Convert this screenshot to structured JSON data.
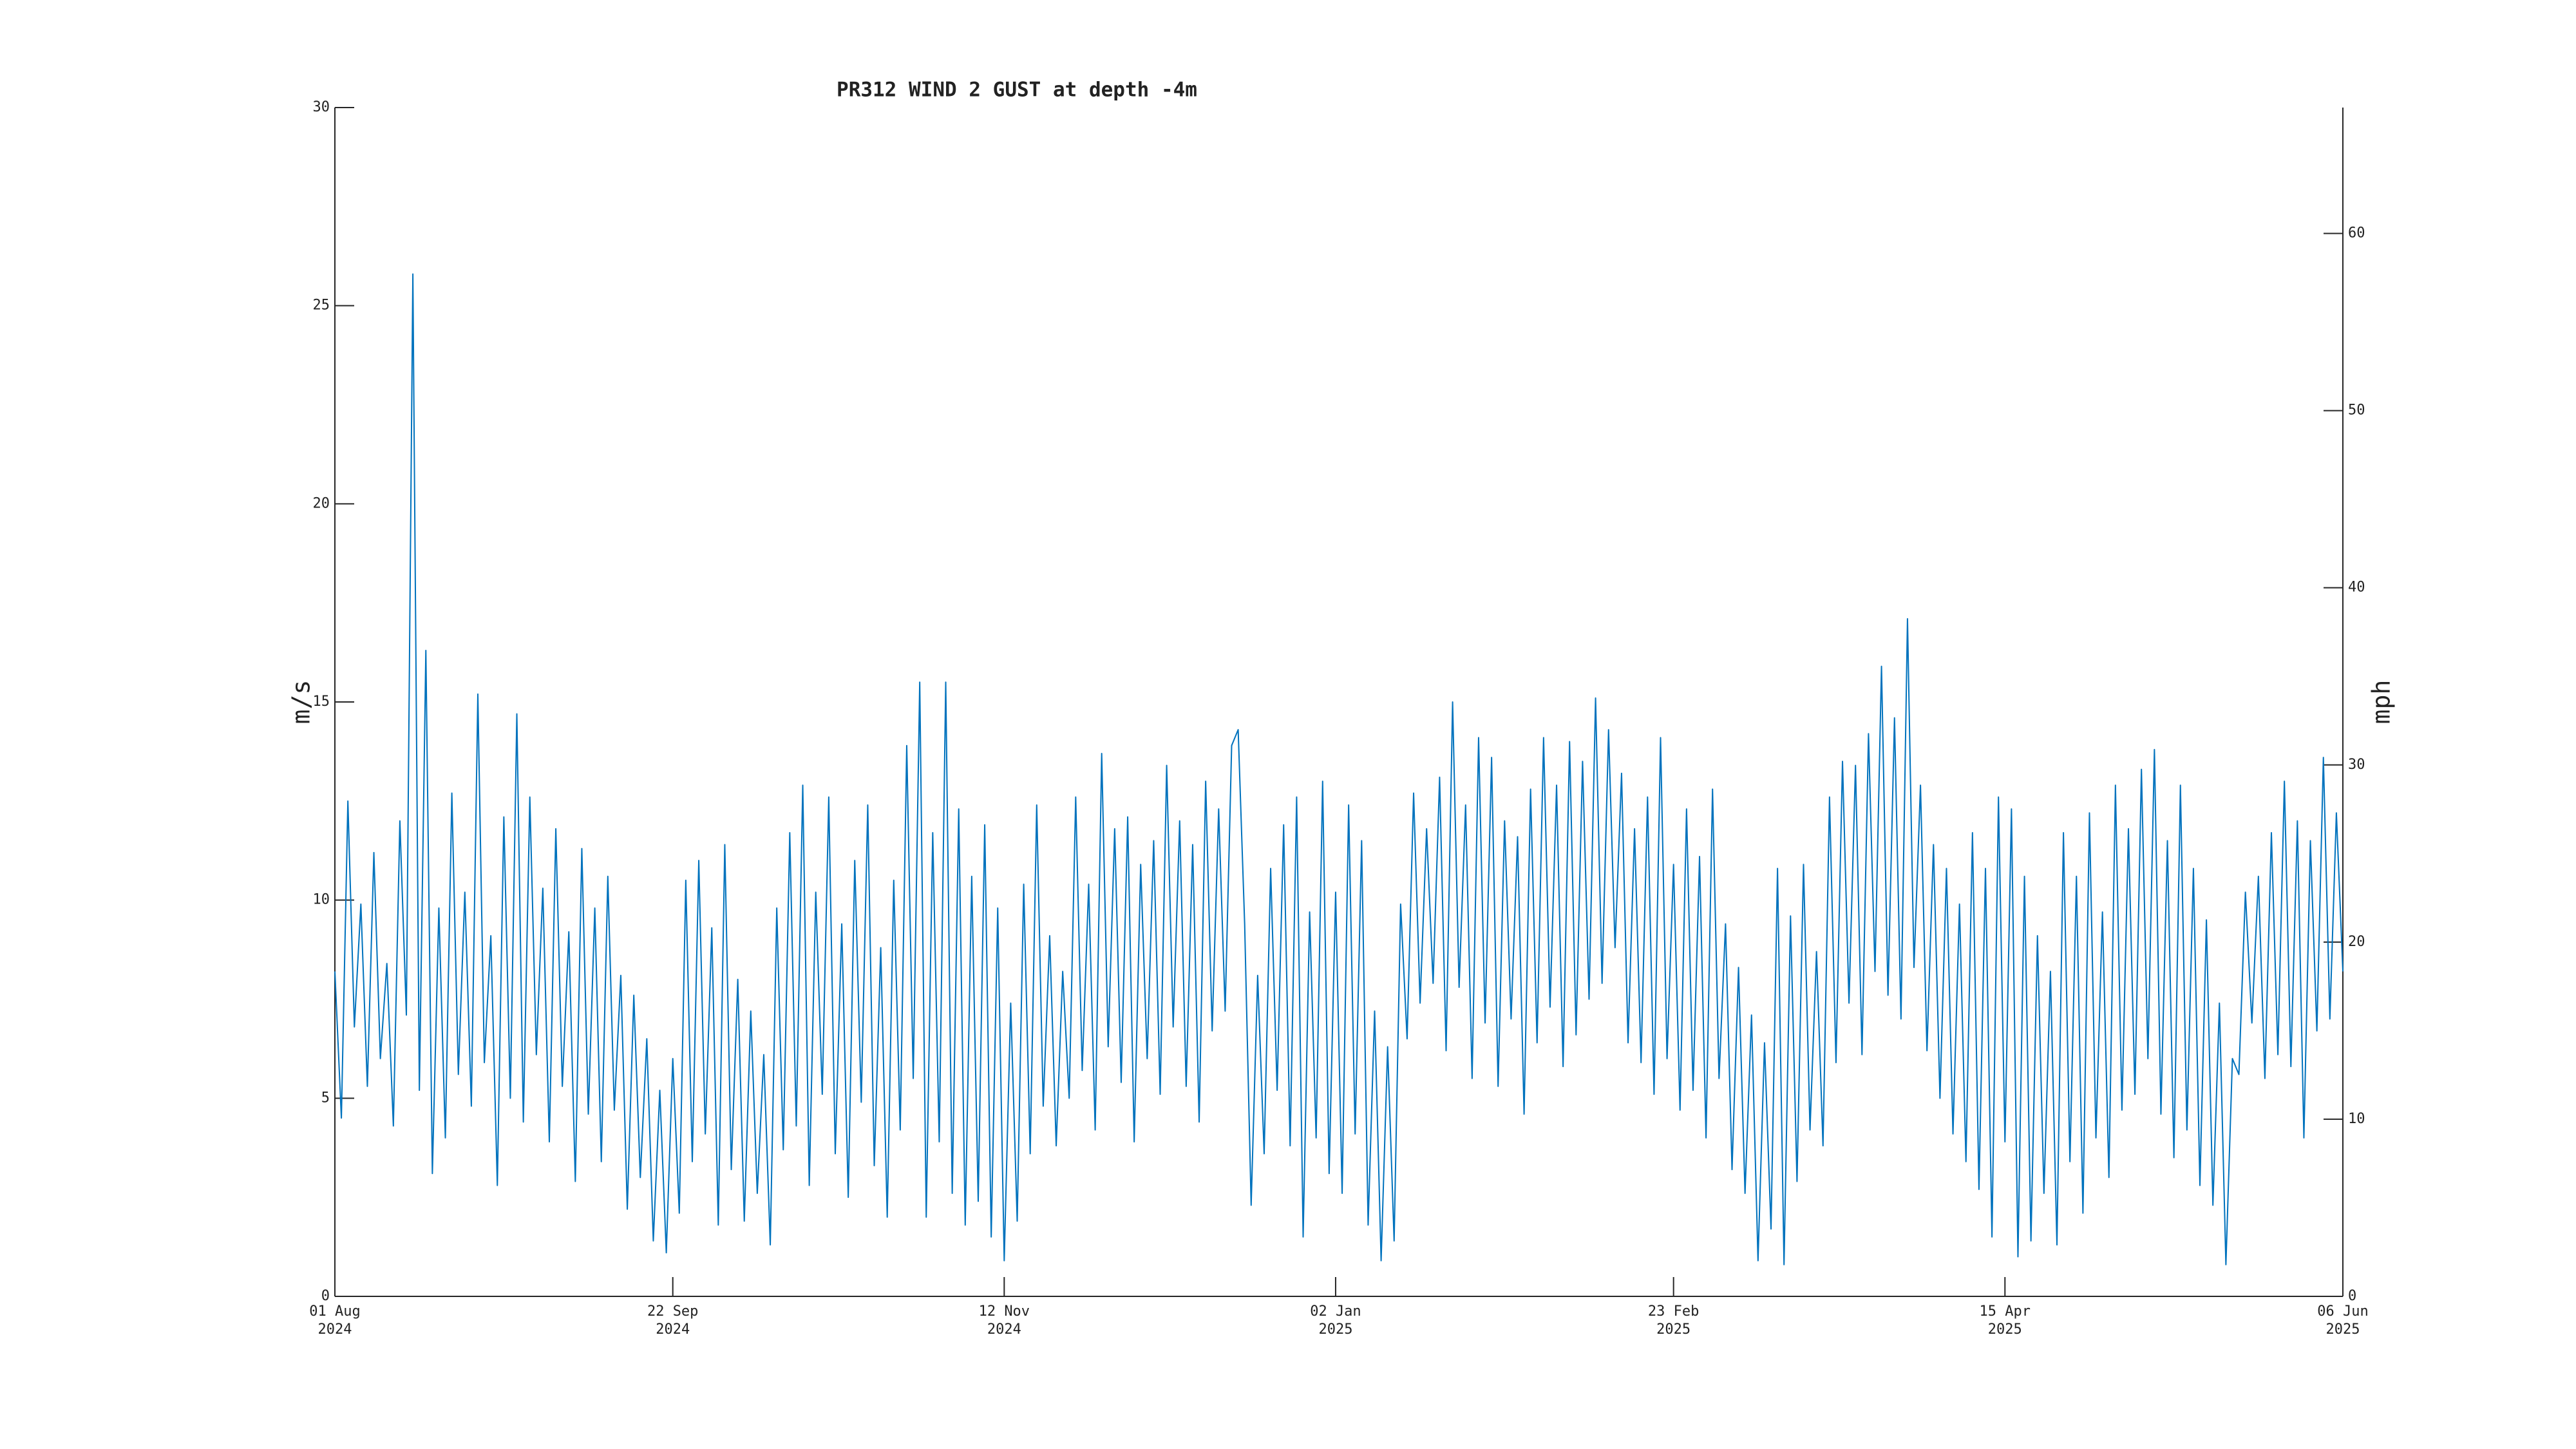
{
  "chart_data": {
    "type": "line",
    "title": "PR312 WIND 2 GUST at depth -4m",
    "ylabel": "m/s",
    "y2label": "mph",
    "xlim": [
      "2024-08-01",
      "2025-06-06"
    ],
    "xticks": [
      {
        "value": "2024-08-01",
        "label": "01 Aug 2024"
      },
      {
        "value": "2024-09-22",
        "label": "22 Sep 2024"
      },
      {
        "value": "2024-11-12",
        "label": "12 Nov 2024"
      },
      {
        "value": "2025-01-02",
        "label": "02 Jan 2025"
      },
      {
        "value": "2025-02-23",
        "label": "23 Feb 2025"
      },
      {
        "value": "2025-04-15",
        "label": "15 Apr 2025"
      },
      {
        "value": "2025-06-06",
        "label": "06 Jun 2025"
      }
    ],
    "ylim": [
      0,
      30
    ],
    "yticks": [
      0,
      5,
      10,
      15,
      20,
      25,
      30
    ],
    "y2lim": [
      0,
      67.108
    ],
    "y2ticks": [
      0,
      10,
      20,
      30,
      40,
      50,
      60
    ],
    "grid": false,
    "x": [
      "2024-08-01",
      "2024-08-02",
      "2024-08-03",
      "2024-08-04",
      "2024-08-05",
      "2024-08-06",
      "2024-08-07",
      "2024-08-08",
      "2024-08-09",
      "2024-08-10",
      "2024-08-11",
      "2024-08-12",
      "2024-08-13",
      "2024-08-14",
      "2024-08-15",
      "2024-08-16",
      "2024-08-17",
      "2024-08-18",
      "2024-08-19",
      "2024-08-20",
      "2024-08-21",
      "2024-08-22",
      "2024-08-23",
      "2024-08-24",
      "2024-08-25",
      "2024-08-26",
      "2024-08-27",
      "2024-08-28",
      "2024-08-29",
      "2024-08-30",
      "2024-08-31",
      "2024-09-01",
      "2024-09-02",
      "2024-09-03",
      "2024-09-04",
      "2024-09-05",
      "2024-09-06",
      "2024-09-07",
      "2024-09-08",
      "2024-09-09",
      "2024-09-10",
      "2024-09-11",
      "2024-09-12",
      "2024-09-13",
      "2024-09-14",
      "2024-09-15",
      "2024-09-16",
      "2024-09-17",
      "2024-09-18",
      "2024-09-19",
      "2024-09-20",
      "2024-09-21",
      "2024-09-22",
      "2024-09-23",
      "2024-09-24",
      "2024-09-25",
      "2024-09-26",
      "2024-09-27",
      "2024-09-28",
      "2024-09-29",
      "2024-09-30",
      "2024-10-01",
      "2024-10-02",
      "2024-10-03",
      "2024-10-04",
      "2024-10-05",
      "2024-10-06",
      "2024-10-07",
      "2024-10-08",
      "2024-10-09",
      "2024-10-10",
      "2024-10-11",
      "2024-10-12",
      "2024-10-13",
      "2024-10-14",
      "2024-10-15",
      "2024-10-16",
      "2024-10-17",
      "2024-10-18",
      "2024-10-19",
      "2024-10-20",
      "2024-10-21",
      "2024-10-22",
      "2024-10-23",
      "2024-10-24",
      "2024-10-25",
      "2024-10-26",
      "2024-10-27",
      "2024-10-28",
      "2024-10-29",
      "2024-10-30",
      "2024-10-31",
      "2024-11-01",
      "2024-11-02",
      "2024-11-03",
      "2024-11-04",
      "2024-11-05",
      "2024-11-06",
      "2024-11-07",
      "2024-11-08",
      "2024-11-09",
      "2024-11-10",
      "2024-11-11",
      "2024-11-12",
      "2024-11-13",
      "2024-11-14",
      "2024-11-15",
      "2024-11-16",
      "2024-11-17",
      "2024-11-18",
      "2024-11-19",
      "2024-11-20",
      "2024-11-21",
      "2024-11-22",
      "2024-11-23",
      "2024-11-24",
      "2024-11-25",
      "2024-11-26",
      "2024-11-27",
      "2024-11-28",
      "2024-11-29",
      "2024-11-30",
      "2024-12-01",
      "2024-12-02",
      "2024-12-03",
      "2024-12-04",
      "2024-12-05",
      "2024-12-06",
      "2024-12-07",
      "2024-12-08",
      "2024-12-09",
      "2024-12-10",
      "2024-12-11",
      "2024-12-12",
      "2024-12-13",
      "2024-12-14",
      "2024-12-15",
      "2024-12-16",
      "2024-12-17",
      "2024-12-18",
      "2024-12-19",
      "2024-12-20",
      "2024-12-21",
      "2024-12-22",
      "2024-12-23",
      "2024-12-24",
      "2024-12-25",
      "2024-12-26",
      "2024-12-27",
      "2024-12-28",
      "2024-12-29",
      "2024-12-30",
      "2024-12-31",
      "2025-01-01",
      "2025-01-02",
      "2025-01-03",
      "2025-01-04",
      "2025-01-05",
      "2025-01-06",
      "2025-01-07",
      "2025-01-08",
      "2025-01-09",
      "2025-01-10",
      "2025-01-11",
      "2025-01-12",
      "2025-01-13",
      "2025-01-14",
      "2025-01-15",
      "2025-01-16",
      "2025-01-17",
      "2025-01-18",
      "2025-01-19",
      "2025-01-20",
      "2025-01-21",
      "2025-01-22",
      "2025-01-23",
      "2025-01-24",
      "2025-01-25",
      "2025-01-26",
      "2025-01-27",
      "2025-01-28",
      "2025-01-29",
      "2025-01-30",
      "2025-01-31",
      "2025-02-01",
      "2025-02-02",
      "2025-02-03",
      "2025-02-04",
      "2025-02-05",
      "2025-02-06",
      "2025-02-07",
      "2025-02-08",
      "2025-02-09",
      "2025-02-10",
      "2025-02-11",
      "2025-02-12",
      "2025-02-13",
      "2025-02-14",
      "2025-02-15",
      "2025-02-16",
      "2025-02-17",
      "2025-02-18",
      "2025-02-19",
      "2025-02-20",
      "2025-02-21",
      "2025-02-22",
      "2025-02-23",
      "2025-02-24",
      "2025-02-25",
      "2025-02-26",
      "2025-02-27",
      "2025-02-28",
      "2025-03-01",
      "2025-03-02",
      "2025-03-03",
      "2025-03-04",
      "2025-03-05",
      "2025-03-06",
      "2025-03-07",
      "2025-03-08",
      "2025-03-09",
      "2025-03-10",
      "2025-03-11",
      "2025-03-12",
      "2025-03-13",
      "2025-03-14",
      "2025-03-15",
      "2025-03-16",
      "2025-03-17",
      "2025-03-18",
      "2025-03-19",
      "2025-03-20",
      "2025-03-21",
      "2025-03-22",
      "2025-03-23",
      "2025-03-24",
      "2025-03-25",
      "2025-03-26",
      "2025-03-27",
      "2025-03-28",
      "2025-03-29",
      "2025-03-30",
      "2025-03-31",
      "2025-04-01",
      "2025-04-02",
      "2025-04-03",
      "2025-04-04",
      "2025-04-05",
      "2025-04-06",
      "2025-04-07",
      "2025-04-08",
      "2025-04-09",
      "2025-04-10",
      "2025-04-11",
      "2025-04-12",
      "2025-04-13",
      "2025-04-14",
      "2025-04-15",
      "2025-04-16",
      "2025-04-17",
      "2025-04-18",
      "2025-04-19",
      "2025-04-20",
      "2025-04-21",
      "2025-04-22",
      "2025-04-23",
      "2025-04-24",
      "2025-04-25",
      "2025-04-26",
      "2025-04-27",
      "2025-04-28",
      "2025-04-29",
      "2025-04-30",
      "2025-05-01",
      "2025-05-02",
      "2025-05-03",
      "2025-05-04",
      "2025-05-05",
      "2025-05-06",
      "2025-05-07",
      "2025-05-08",
      "2025-05-09",
      "2025-05-10",
      "2025-05-11",
      "2025-05-12",
      "2025-05-13",
      "2025-05-14",
      "2025-05-15",
      "2025-05-16",
      "2025-05-17",
      "2025-05-18",
      "2025-05-19",
      "2025-05-20",
      "2025-05-21",
      "2025-05-22",
      "2025-05-23",
      "2025-05-24",
      "2025-05-25",
      "2025-05-26",
      "2025-05-27",
      "2025-05-28",
      "2025-05-29",
      "2025-05-30",
      "2025-05-31",
      "2025-06-01",
      "2025-06-02",
      "2025-06-03",
      "2025-06-04",
      "2025-06-05",
      "2025-06-06"
    ],
    "series": [
      {
        "color": "#0072bd",
        "values": [
          8.2,
          4.5,
          12.5,
          6.8,
          9.9,
          5.3,
          11.2,
          6.0,
          8.4,
          4.3,
          12.0,
          7.1,
          25.8,
          5.2,
          16.3,
          3.1,
          9.8,
          4.0,
          12.7,
          5.6,
          10.2,
          4.8,
          15.2,
          5.9,
          9.1,
          2.8,
          12.1,
          5.0,
          14.7,
          4.4,
          12.6,
          6.1,
          10.3,
          3.9,
          11.8,
          5.3,
          9.2,
          2.9,
          11.3,
          4.6,
          9.8,
          3.4,
          10.6,
          4.7,
          8.1,
          2.2,
          7.6,
          3.0,
          6.5,
          1.4,
          5.2,
          1.1,
          6.0,
          2.1,
          10.5,
          3.4,
          11.0,
          4.1,
          9.3,
          1.8,
          11.4,
          3.2,
          8.0,
          1.9,
          7.2,
          2.6,
          6.1,
          1.3,
          9.8,
          3.7,
          11.7,
          4.3,
          12.9,
          2.8,
          10.2,
          5.1,
          12.6,
          3.6,
          9.4,
          2.5,
          11.0,
          4.9,
          12.4,
          3.3,
          8.8,
          2.0,
          10.5,
          4.2,
          13.9,
          5.5,
          15.5,
          2.0,
          11.7,
          3.9,
          15.5,
          2.6,
          12.3,
          1.8,
          10.6,
          2.4,
          11.9,
          1.5,
          9.8,
          0.9,
          7.4,
          1.9,
          10.4,
          3.6,
          12.4,
          4.8,
          9.1,
          3.8,
          8.2,
          5.0,
          12.6,
          5.7,
          10.4,
          4.2,
          13.7,
          6.3,
          11.8,
          5.4,
          12.1,
          3.9,
          10.9,
          6.0,
          11.5,
          5.1,
          13.4,
          6.8,
          12.0,
          5.3,
          11.4,
          4.4,
          13.0,
          6.7,
          12.3,
          7.2,
          13.9,
          14.3,
          9.4,
          2.3,
          8.1,
          3.6,
          10.8,
          5.2,
          11.9,
          3.8,
          12.6,
          1.5,
          9.7,
          4.0,
          13.0,
          3.1,
          10.2,
          2.6,
          12.4,
          4.1,
          11.5,
          1.8,
          7.2,
          0.9,
          6.3,
          1.4,
          9.9,
          6.5,
          12.7,
          7.4,
          11.8,
          7.9,
          13.1,
          6.2,
          15.0,
          7.8,
          12.4,
          5.5,
          14.1,
          6.9,
          13.6,
          5.3,
          12.0,
          7.0,
          11.6,
          4.6,
          12.8,
          6.4,
          14.1,
          7.3,
          12.9,
          5.8,
          14.0,
          6.6,
          13.5,
          7.5,
          15.1,
          7.9,
          14.3,
          8.8,
          13.2,
          6.4,
          11.8,
          5.9,
          12.6,
          5.1,
          14.1,
          6.0,
          10.9,
          4.7,
          12.3,
          5.2,
          11.1,
          4.0,
          12.8,
          5.5,
          9.4,
          3.2,
          8.3,
          2.6,
          7.1,
          0.9,
          6.4,
          1.7,
          10.8,
          0.8,
          9.6,
          2.9,
          10.9,
          4.2,
          8.7,
          3.8,
          12.6,
          5.9,
          13.5,
          7.4,
          13.4,
          6.1,
          14.2,
          8.2,
          15.9,
          7.6,
          14.6,
          7.0,
          17.1,
          8.3,
          12.9,
          6.2,
          11.4,
          5.0,
          10.8,
          4.1,
          9.9,
          3.4,
          11.7,
          2.7,
          10.8,
          1.5,
          12.6,
          3.9,
          12.3,
          1.0,
          10.6,
          1.4,
          9.1,
          2.6,
          8.2,
          1.3,
          11.7,
          3.4,
          10.6,
          2.1,
          12.2,
          4.0,
          9.7,
          3.0,
          12.9,
          4.7,
          11.8,
          5.1,
          13.3,
          6.0,
          13.8,
          4.6,
          11.5,
          3.5,
          12.9,
          4.2,
          10.8,
          2.8,
          9.5,
          2.3,
          7.4,
          0.8,
          6.0,
          5.6,
          10.2,
          6.9,
          10.6,
          5.5,
          11.7,
          6.1,
          13.0,
          5.8,
          12.0,
          4.0,
          11.5,
          6.7,
          13.6,
          7.0,
          12.2,
          8.2
        ]
      }
    ]
  }
}
